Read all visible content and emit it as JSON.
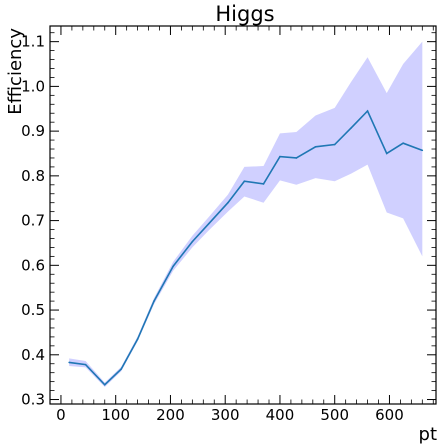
{
  "chart_data": {
    "type": "line",
    "title": "Higgs",
    "xlabel": "pt",
    "ylabel": "Efficiency",
    "xlim": [
      -20,
      685
    ],
    "ylim": [
      0.29,
      1.135
    ],
    "xticks": [
      0,
      100,
      200,
      300,
      400,
      500,
      600
    ],
    "yticks": [
      0.3,
      0.4,
      0.5,
      0.6,
      0.7,
      0.8,
      0.9,
      1.0,
      1.1
    ],
    "x_tick_labels": [
      "0",
      "100",
      "200",
      "300",
      "400",
      "500",
      "600"
    ],
    "y_tick_labels": [
      "0.3",
      "0.4",
      "0.5",
      "0.6",
      "0.7",
      "0.8",
      "0.9",
      "1.0",
      "1.1"
    ],
    "grid": false,
    "series": [
      {
        "x": [
          15,
          45,
          80,
          110,
          140,
          170,
          205,
          240,
          270,
          305,
          335,
          370,
          400,
          430,
          465,
          500,
          530,
          560,
          595,
          625,
          660
        ],
        "values": [
          0.383,
          0.378,
          0.333,
          0.368,
          0.435,
          0.52,
          0.598,
          0.653,
          0.693,
          0.74,
          0.788,
          0.782,
          0.843,
          0.84,
          0.865,
          0.87,
          0.907,
          0.945,
          0.85,
          0.873,
          0.857
        ],
        "lower": [
          0.375,
          0.372,
          0.328,
          0.363,
          0.43,
          0.513,
          0.588,
          0.64,
          0.678,
          0.72,
          0.754,
          0.74,
          0.79,
          0.78,
          0.795,
          0.788,
          0.805,
          0.825,
          0.718,
          0.705,
          0.62
        ],
        "upper": [
          0.392,
          0.386,
          0.338,
          0.373,
          0.441,
          0.527,
          0.608,
          0.666,
          0.708,
          0.758,
          0.82,
          0.822,
          0.895,
          0.898,
          0.935,
          0.952,
          1.01,
          1.065,
          0.985,
          1.05,
          1.1
        ]
      }
    ],
    "colors": {
      "line": "#1f77b4",
      "band": "#d0d0ff"
    }
  }
}
